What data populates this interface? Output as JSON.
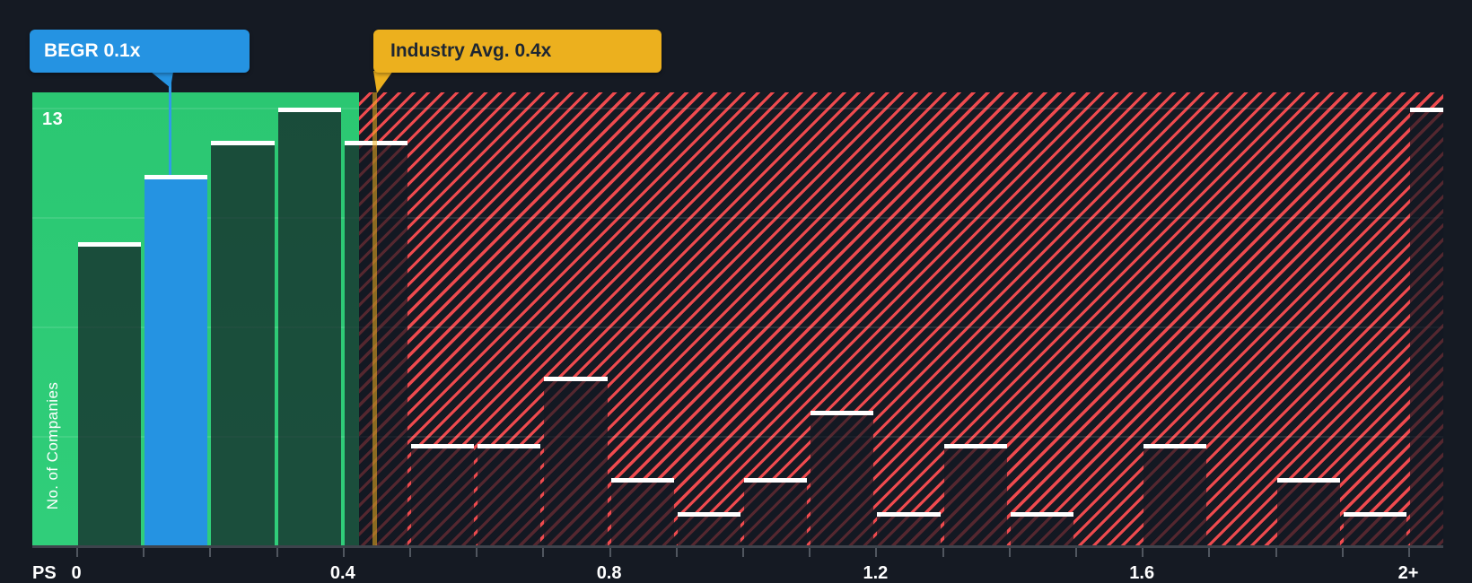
{
  "chart_data": {
    "type": "bar",
    "subtype": "histogram",
    "ylabel": "No. of Companies",
    "y_max_gridline_label": "13",
    "x_axis_prefix": "PS",
    "x_tick_labels": [
      "0",
      "0.4",
      "0.8",
      "1.2",
      "1.6",
      "2+"
    ],
    "x_tick_values": [
      0,
      0.4,
      0.8,
      1.2,
      1.6,
      2.0
    ],
    "bin_width": 0.1,
    "bin_starts": [
      0.0,
      0.1,
      0.2,
      0.3,
      0.4,
      0.5,
      0.6,
      0.7,
      0.8,
      0.9,
      1.0,
      1.1,
      1.2,
      1.3,
      1.4,
      1.5,
      1.6,
      1.7,
      1.8,
      1.9,
      2.0
    ],
    "values": [
      9,
      11,
      12,
      13,
      12,
      3,
      3,
      5,
      2,
      1,
      2,
      4,
      1,
      3,
      1,
      0,
      3,
      0,
      2,
      1,
      13
    ],
    "ylim": [
      0,
      13.45
    ],
    "gridline_values": [
      13,
      9.75,
      6.5,
      3.25
    ],
    "legend_position": "none",
    "highlight": {
      "label": "BEGR 0.1x",
      "bin_index": 1,
      "value": 11,
      "x_value": 0.1
    },
    "industry_avg": {
      "label": "Industry Avg. 0.4x",
      "x_value": 0.4
    },
    "zones": {
      "below_avg": "green-solid",
      "above_avg": "red-hatched"
    }
  },
  "colors": {
    "background": "#151A23",
    "zone_green": "#2BC772",
    "hatch_red": "#EE4A4E",
    "highlight_blue": "#2593E2",
    "industry_yellow": "#ECB01E",
    "bar_cap_white": "#FFFFFF",
    "bar_fill_overlay": "rgba(18,24,34,0.70)",
    "axis_gray": "#50565F",
    "text_on_yellow": "#1D2633",
    "text_white": "#FFFFFF"
  }
}
